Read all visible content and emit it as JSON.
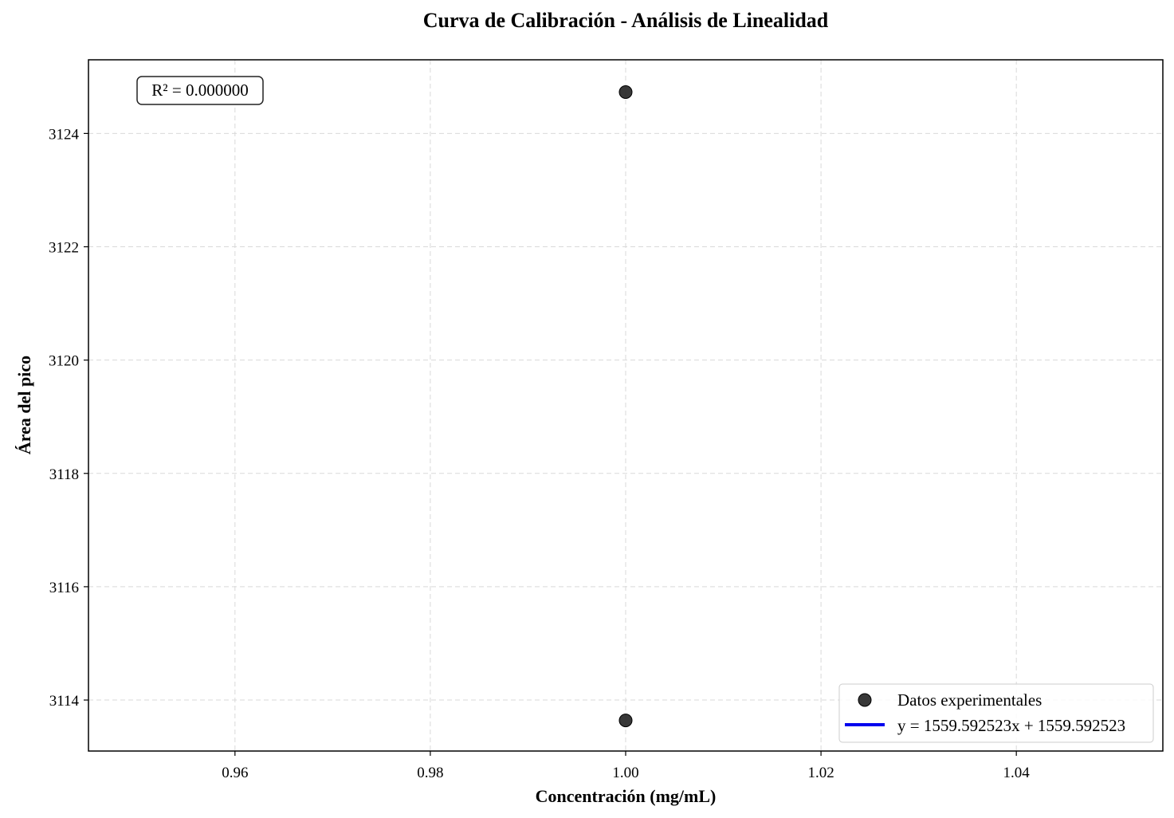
{
  "chart_data": {
    "type": "scatter",
    "title": "Curva de Calibración - Análisis de Linealidad",
    "xlabel": "Concentración (mg/mL)",
    "ylabel": "Área del pico",
    "xlim": [
      0.945,
      1.055
    ],
    "ylim": [
      3113.1,
      3125.3
    ],
    "xticks": [
      "0.96",
      "0.98",
      "1.00",
      "1.02",
      "1.04"
    ],
    "xtick_values": [
      0.96,
      0.98,
      1.0,
      1.02,
      1.04
    ],
    "yticks": [
      "3114",
      "3116",
      "3118",
      "3120",
      "3122",
      "3124"
    ],
    "ytick_values": [
      3114,
      3116,
      3118,
      3120,
      3122,
      3124
    ],
    "grid": true,
    "series": [
      {
        "name": "Datos experimentales",
        "kind": "scatter",
        "color": "#222222",
        "points": [
          {
            "x": 1.0,
            "y": 3124.73
          },
          {
            "x": 1.0,
            "y": 3113.64
          }
        ]
      },
      {
        "name": "y = 1559.592523x + 1559.592523",
        "kind": "line",
        "color": "#0000ee",
        "slope": 1559.592523,
        "intercept": 1559.592523
      }
    ],
    "annotation": "R² = 0.000000",
    "legend_position": "lower-right"
  }
}
